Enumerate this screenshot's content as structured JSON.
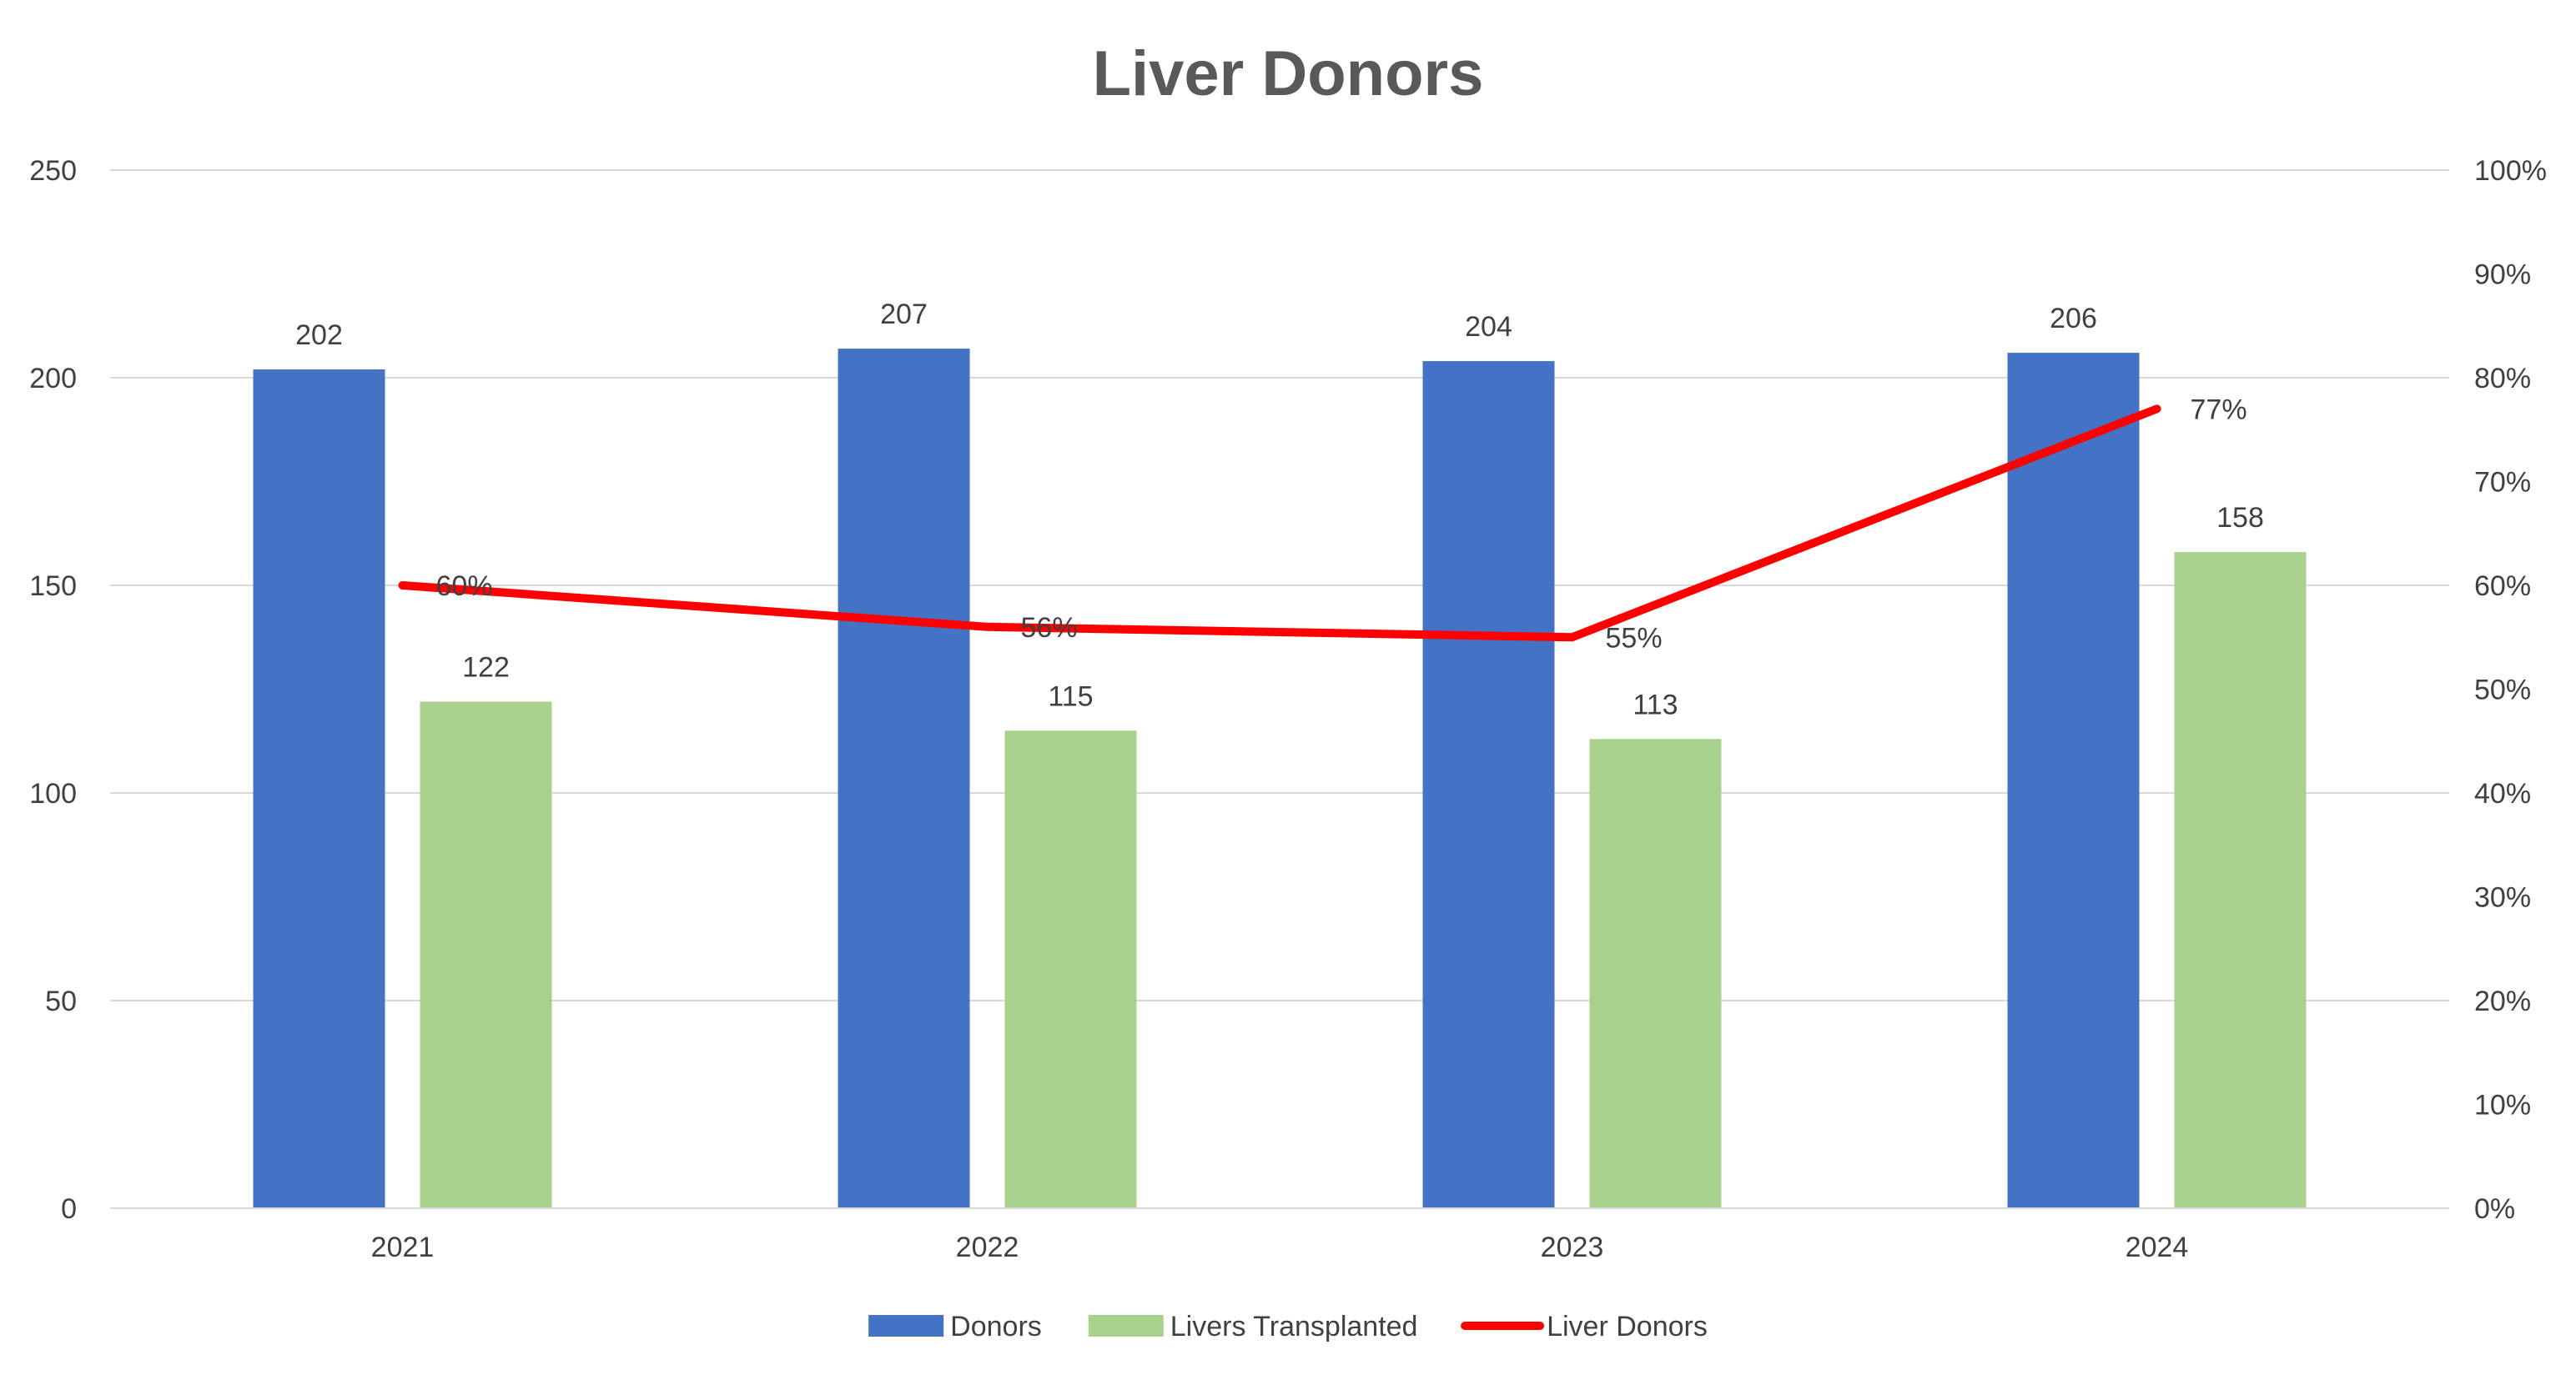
{
  "chart_data": {
    "type": "bar",
    "title": "Liver Donors",
    "categories": [
      "2021",
      "2022",
      "2023",
      "2024"
    ],
    "series": [
      {
        "name": "Donors",
        "type": "bar",
        "axis": "left",
        "color": "#4472C4",
        "values": [
          202,
          207,
          204,
          206
        ]
      },
      {
        "name": "Livers Transplanted",
        "type": "bar",
        "axis": "left",
        "color": "#A9D18E",
        "values": [
          122,
          115,
          113,
          158
        ]
      },
      {
        "name": "Liver Donors",
        "type": "line",
        "axis": "right",
        "color": "#FF0000",
        "values": [
          60,
          56,
          55,
          77
        ]
      }
    ],
    "data_labels": {
      "Donors": [
        "202",
        "207",
        "204",
        "206"
      ],
      "Livers Transplanted": [
        "122",
        "115",
        "113",
        "158"
      ],
      "Liver Donors": [
        "60%",
        "56%",
        "55%",
        "77%"
      ]
    },
    "y_left": {
      "min": 0,
      "max": 250,
      "ticks": [
        "0",
        "50",
        "100",
        "150",
        "200",
        "250"
      ]
    },
    "y_right": {
      "min": 0,
      "max": 100,
      "unit": "%",
      "ticks": [
        "0%",
        "10%",
        "20%",
        "30%",
        "40%",
        "50%",
        "60%",
        "70%",
        "80%",
        "90%",
        "100%"
      ]
    },
    "xlabel": "",
    "ylabel": "",
    "grid": true,
    "legend": "bottom"
  }
}
